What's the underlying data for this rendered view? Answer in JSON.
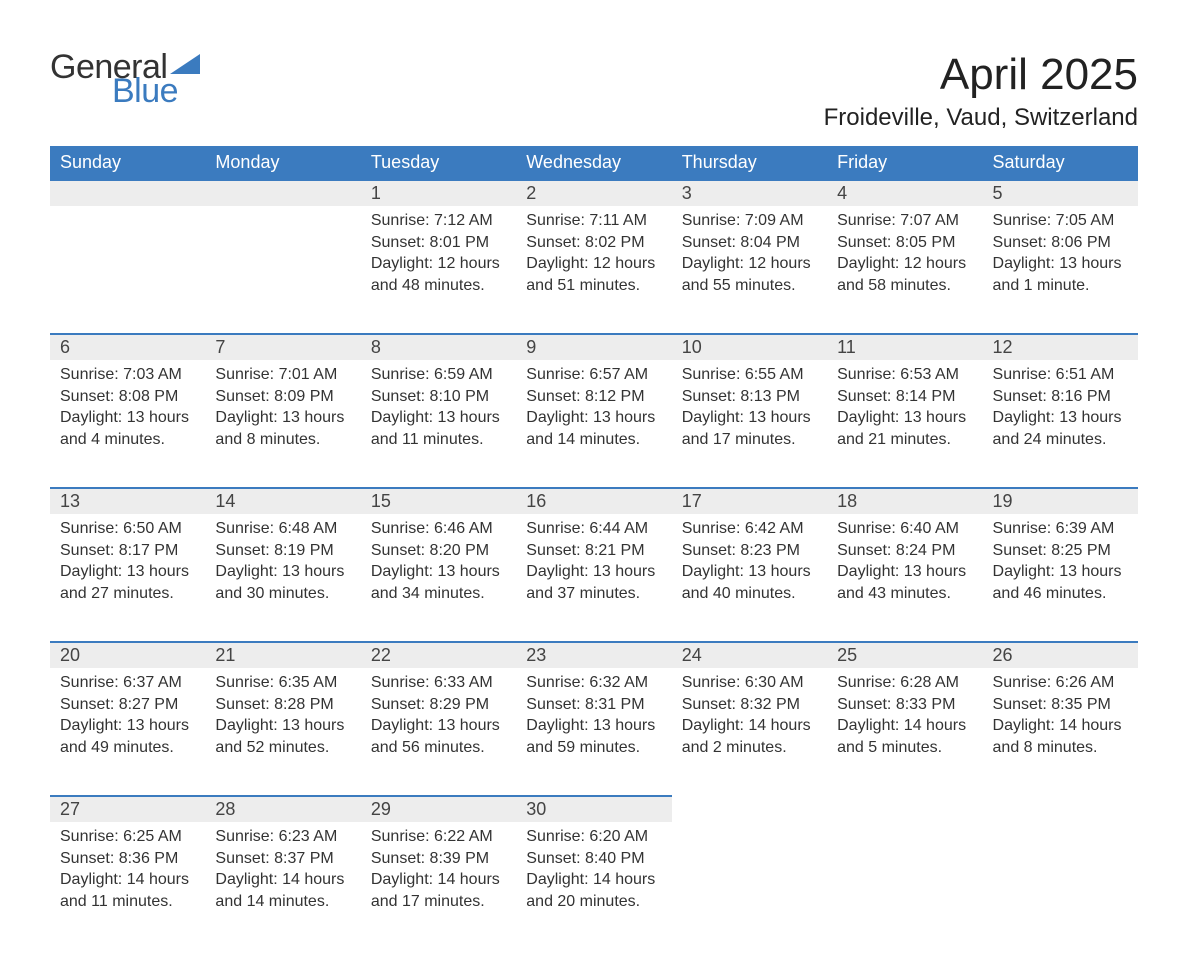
{
  "logo": {
    "word1": "General",
    "word2": "Blue",
    "accent_color": "#3b7bbf"
  },
  "title": "April 2025",
  "location": "Froideville, Vaud, Switzerland",
  "colors": {
    "header_bg": "#3b7bbf",
    "header_text": "#ffffff",
    "daynum_bg": "#ededed",
    "row_border": "#3b7bbf",
    "body_text": "#333333",
    "background": "#ffffff"
  },
  "fonts": {
    "title_size_pt": 33,
    "location_size_pt": 18,
    "dayheader_size_pt": 14,
    "daynum_size_pt": 14,
    "cell_size_pt": 12
  },
  "day_headers": [
    "Sunday",
    "Monday",
    "Tuesday",
    "Wednesday",
    "Thursday",
    "Friday",
    "Saturday"
  ],
  "weeks": [
    [
      null,
      null,
      {
        "n": "1",
        "sunrise": "7:12 AM",
        "sunset": "8:01 PM",
        "daylight": "12 hours and 48 minutes."
      },
      {
        "n": "2",
        "sunrise": "7:11 AM",
        "sunset": "8:02 PM",
        "daylight": "12 hours and 51 minutes."
      },
      {
        "n": "3",
        "sunrise": "7:09 AM",
        "sunset": "8:04 PM",
        "daylight": "12 hours and 55 minutes."
      },
      {
        "n": "4",
        "sunrise": "7:07 AM",
        "sunset": "8:05 PM",
        "daylight": "12 hours and 58 minutes."
      },
      {
        "n": "5",
        "sunrise": "7:05 AM",
        "sunset": "8:06 PM",
        "daylight": "13 hours and 1 minute."
      }
    ],
    [
      {
        "n": "6",
        "sunrise": "7:03 AM",
        "sunset": "8:08 PM",
        "daylight": "13 hours and 4 minutes."
      },
      {
        "n": "7",
        "sunrise": "7:01 AM",
        "sunset": "8:09 PM",
        "daylight": "13 hours and 8 minutes."
      },
      {
        "n": "8",
        "sunrise": "6:59 AM",
        "sunset": "8:10 PM",
        "daylight": "13 hours and 11 minutes."
      },
      {
        "n": "9",
        "sunrise": "6:57 AM",
        "sunset": "8:12 PM",
        "daylight": "13 hours and 14 minutes."
      },
      {
        "n": "10",
        "sunrise": "6:55 AM",
        "sunset": "8:13 PM",
        "daylight": "13 hours and 17 minutes."
      },
      {
        "n": "11",
        "sunrise": "6:53 AM",
        "sunset": "8:14 PM",
        "daylight": "13 hours and 21 minutes."
      },
      {
        "n": "12",
        "sunrise": "6:51 AM",
        "sunset": "8:16 PM",
        "daylight": "13 hours and 24 minutes."
      }
    ],
    [
      {
        "n": "13",
        "sunrise": "6:50 AM",
        "sunset": "8:17 PM",
        "daylight": "13 hours and 27 minutes."
      },
      {
        "n": "14",
        "sunrise": "6:48 AM",
        "sunset": "8:19 PM",
        "daylight": "13 hours and 30 minutes."
      },
      {
        "n": "15",
        "sunrise": "6:46 AM",
        "sunset": "8:20 PM",
        "daylight": "13 hours and 34 minutes."
      },
      {
        "n": "16",
        "sunrise": "6:44 AM",
        "sunset": "8:21 PM",
        "daylight": "13 hours and 37 minutes."
      },
      {
        "n": "17",
        "sunrise": "6:42 AM",
        "sunset": "8:23 PM",
        "daylight": "13 hours and 40 minutes."
      },
      {
        "n": "18",
        "sunrise": "6:40 AM",
        "sunset": "8:24 PM",
        "daylight": "13 hours and 43 minutes."
      },
      {
        "n": "19",
        "sunrise": "6:39 AM",
        "sunset": "8:25 PM",
        "daylight": "13 hours and 46 minutes."
      }
    ],
    [
      {
        "n": "20",
        "sunrise": "6:37 AM",
        "sunset": "8:27 PM",
        "daylight": "13 hours and 49 minutes."
      },
      {
        "n": "21",
        "sunrise": "6:35 AM",
        "sunset": "8:28 PM",
        "daylight": "13 hours and 52 minutes."
      },
      {
        "n": "22",
        "sunrise": "6:33 AM",
        "sunset": "8:29 PM",
        "daylight": "13 hours and 56 minutes."
      },
      {
        "n": "23",
        "sunrise": "6:32 AM",
        "sunset": "8:31 PM",
        "daylight": "13 hours and 59 minutes."
      },
      {
        "n": "24",
        "sunrise": "6:30 AM",
        "sunset": "8:32 PM",
        "daylight": "14 hours and 2 minutes."
      },
      {
        "n": "25",
        "sunrise": "6:28 AM",
        "sunset": "8:33 PM",
        "daylight": "14 hours and 5 minutes."
      },
      {
        "n": "26",
        "sunrise": "6:26 AM",
        "sunset": "8:35 PM",
        "daylight": "14 hours and 8 minutes."
      }
    ],
    [
      {
        "n": "27",
        "sunrise": "6:25 AM",
        "sunset": "8:36 PM",
        "daylight": "14 hours and 11 minutes."
      },
      {
        "n": "28",
        "sunrise": "6:23 AM",
        "sunset": "8:37 PM",
        "daylight": "14 hours and 14 minutes."
      },
      {
        "n": "29",
        "sunrise": "6:22 AM",
        "sunset": "8:39 PM",
        "daylight": "14 hours and 17 minutes."
      },
      {
        "n": "30",
        "sunrise": "6:20 AM",
        "sunset": "8:40 PM",
        "daylight": "14 hours and 20 minutes."
      },
      null,
      null,
      null
    ]
  ],
  "labels": {
    "sunrise": "Sunrise:",
    "sunset": "Sunset:",
    "daylight": "Daylight:"
  }
}
